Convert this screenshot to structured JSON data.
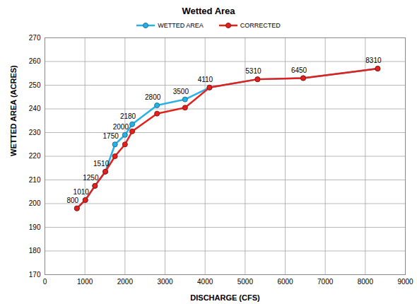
{
  "chart_data": {
    "type": "line",
    "title": "Wetted Area",
    "x_label": "DISCHARGE (CFS)",
    "y_label": "WETTED AREA (ACRES)",
    "x": [
      800,
      1010,
      1250,
      1510,
      1750,
      2000,
      2180,
      2800,
      3500,
      4110,
      5310,
      6450,
      8310
    ],
    "series": [
      {
        "name": "WETTED AREA",
        "color": "#29b1e6",
        "marker": "circle",
        "line_style": "solid",
        "values": [
          198,
          201.5,
          207.5,
          213.5,
          225,
          229,
          233.5,
          241.5,
          244,
          249,
          252.5,
          253,
          257
        ]
      },
      {
        "name": "CORRECTED",
        "color": "#e3201b",
        "marker": "circle",
        "line_style": "solid",
        "values": [
          198,
          201.5,
          207.5,
          213.5,
          220,
          225,
          230.5,
          238,
          240.5,
          249,
          252.5,
          253,
          257
        ]
      }
    ],
    "xlim": [
      0,
      9000
    ],
    "xticks": [
      0,
      1000,
      2000,
      3000,
      4000,
      5000,
      6000,
      7000,
      8000,
      9000
    ],
    "ylim": [
      170,
      270
    ],
    "yticks": [
      170,
      180,
      190,
      200,
      210,
      220,
      230,
      240,
      250,
      260,
      270
    ],
    "grid": true,
    "legend": "top",
    "data_labels": true
  }
}
